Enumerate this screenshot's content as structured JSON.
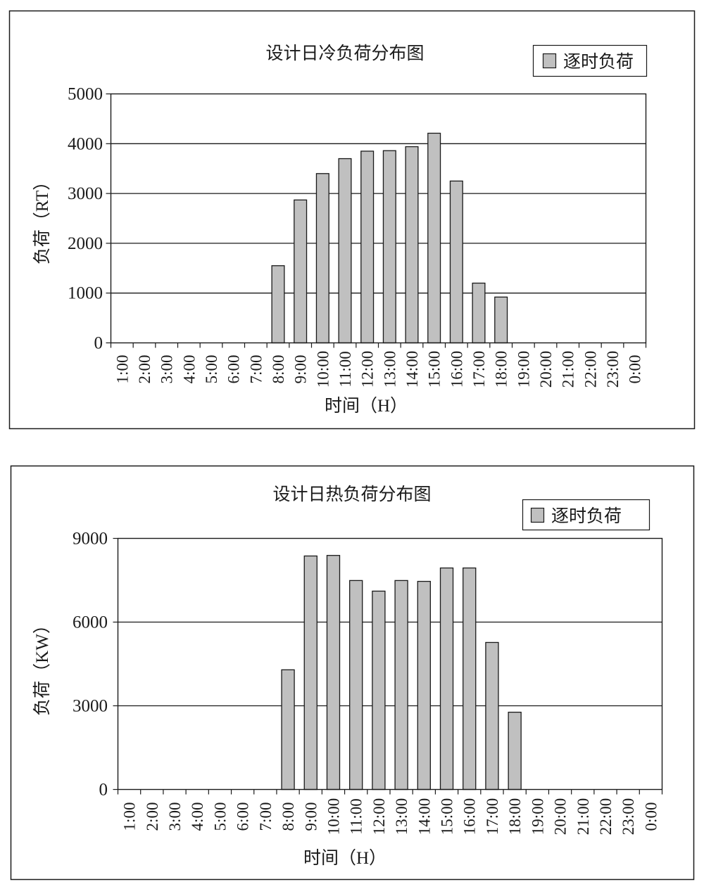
{
  "chart_data": [
    {
      "type": "bar",
      "title": "设计日冷负荷分布图",
      "xlabel": "时间（H）",
      "ylabel": "负荷（RT）",
      "ylim": [
        0,
        5000
      ],
      "yticks": [
        0,
        1000,
        2000,
        3000,
        4000,
        5000
      ],
      "grid": true,
      "legend_position": "top-right",
      "categories": [
        "1:00",
        "2:00",
        "3:00",
        "4:00",
        "5:00",
        "6:00",
        "7:00",
        "8:00",
        "9:00",
        "10:00",
        "11:00",
        "12:00",
        "13:00",
        "14:00",
        "15:00",
        "16:00",
        "17:00",
        "18:00",
        "19:00",
        "20:00",
        "21:00",
        "22:00",
        "23:00",
        "0:00"
      ],
      "series": [
        {
          "name": "逐时负荷",
          "color": "#c0c0c0",
          "values": [
            0,
            0,
            0,
            0,
            0,
            0,
            0,
            1550,
            2870,
            3400,
            3700,
            3850,
            3860,
            3940,
            4210,
            3250,
            1200,
            920,
            0,
            0,
            0,
            0,
            0,
            0
          ]
        }
      ]
    },
    {
      "type": "bar",
      "title": "设计日热负荷分布图",
      "xlabel": "时间（H）",
      "ylabel": "负荷（KW）",
      "ylim": [
        0,
        9000
      ],
      "yticks": [
        0,
        3000,
        6000,
        9000
      ],
      "grid": true,
      "legend_position": "top-right",
      "categories": [
        "1:00",
        "2:00",
        "3:00",
        "4:00",
        "5:00",
        "6:00",
        "7:00",
        "8:00",
        "9:00",
        "10:00",
        "11:00",
        "12:00",
        "13:00",
        "14:00",
        "15:00",
        "16:00",
        "17:00",
        "18:00",
        "19:00",
        "20:00",
        "21:00",
        "22:00",
        "23:00",
        "0:00"
      ],
      "series": [
        {
          "name": "逐时负荷",
          "color": "#c0c0c0",
          "values": [
            0,
            0,
            0,
            0,
            0,
            0,
            0,
            4290,
            8370,
            8390,
            7490,
            7110,
            7490,
            7460,
            7940,
            7940,
            5270,
            2770,
            0,
            0,
            0,
            0,
            0,
            0
          ]
        }
      ]
    }
  ]
}
